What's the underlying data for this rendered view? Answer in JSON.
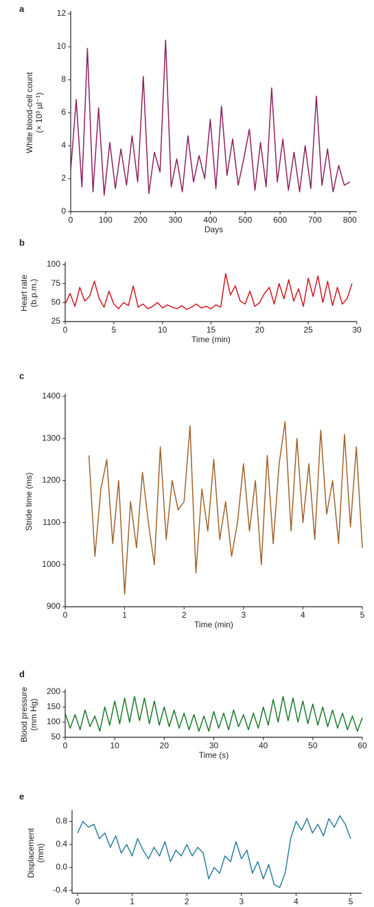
{
  "chart_data": [
    {
      "type": "line",
      "panel_label": "a",
      "ylabel": [
        "White blood-cell count",
        "(× 10³ µl⁻¹)"
      ],
      "xlabel": "Days",
      "color": "#8e1f5e",
      "xlim": [
        0,
        820
      ],
      "ylim": [
        0,
        12
      ],
      "xticks": [
        0,
        100,
        200,
        300,
        400,
        500,
        600,
        700,
        800
      ],
      "yticks": [
        0,
        2,
        4,
        6,
        8,
        10,
        12
      ],
      "x": [
        0,
        16,
        32,
        48,
        64,
        80,
        96,
        112,
        128,
        144,
        160,
        176,
        192,
        208,
        224,
        240,
        256,
        272,
        288,
        304,
        320,
        336,
        352,
        368,
        384,
        400,
        416,
        432,
        448,
        464,
        480,
        496,
        512,
        528,
        544,
        560,
        576,
        592,
        608,
        624,
        640,
        656,
        672,
        688,
        704,
        720,
        736,
        752,
        768,
        784,
        800
      ],
      "values": [
        2.5,
        6.8,
        1.5,
        9.9,
        1.2,
        6.3,
        1.0,
        4.2,
        1.4,
        3.8,
        1.6,
        4.6,
        1.8,
        8.2,
        1.1,
        3.6,
        2.4,
        10.4,
        1.5,
        3.2,
        1.2,
        4.6,
        1.8,
        3.4,
        2.0,
        5.6,
        1.4,
        6.4,
        2.2,
        4.4,
        1.6,
        3.2,
        5.0,
        1.3,
        4.2,
        1.5,
        7.5,
        1.8,
        4.4,
        1.3,
        3.6,
        1.2,
        4.0,
        1.4,
        7.0,
        1.6,
        3.8,
        1.2,
        2.8,
        1.6,
        1.8
      ]
    },
    {
      "type": "line",
      "panel_label": "b",
      "ylabel": [
        "Heart rate",
        "(b.p.m.)"
      ],
      "xlabel": "Time (min)",
      "color": "#d0161e",
      "xlim": [
        0,
        30
      ],
      "ylim": [
        25,
        100
      ],
      "xticks": [
        0,
        5,
        10,
        15,
        20,
        25,
        30
      ],
      "yticks": [
        25,
        50,
        75,
        100
      ],
      "x": [
        0,
        0.5,
        1,
        1.5,
        2,
        2.5,
        3,
        3.5,
        4,
        4.5,
        5,
        5.5,
        6,
        6.5,
        7,
        7.5,
        8,
        8.5,
        9,
        9.5,
        10,
        10.5,
        11,
        11.5,
        12,
        12.5,
        13,
        13.5,
        14,
        14.5,
        15,
        15.5,
        16,
        16.5,
        17,
        17.5,
        18,
        18.5,
        19,
        19.5,
        20,
        20.5,
        21,
        21.5,
        22,
        22.5,
        23,
        23.5,
        24,
        24.5,
        25,
        25.5,
        26,
        26.5,
        27,
        27.5,
        28,
        28.5,
        29,
        29.5
      ],
      "values": [
        48,
        62,
        45,
        70,
        52,
        58,
        78,
        55,
        44,
        65,
        48,
        42,
        50,
        46,
        72,
        44,
        48,
        42,
        45,
        50,
        43,
        47,
        44,
        42,
        46,
        41,
        44,
        48,
        43,
        45,
        42,
        47,
        44,
        88,
        60,
        72,
        52,
        48,
        65,
        45,
        50,
        62,
        70,
        48,
        75,
        55,
        80,
        52,
        68,
        45,
        82,
        58,
        85,
        50,
        78,
        46,
        70,
        48,
        55,
        75
      ]
    },
    {
      "type": "line",
      "panel_label": "c",
      "ylabel": [
        "Stride time (ms)"
      ],
      "xlabel": "Time (min)",
      "color": "#a0622a",
      "xlim": [
        0,
        5
      ],
      "ylim": [
        900,
        1400
      ],
      "xticks": [
        0,
        1,
        2,
        3,
        4,
        5
      ],
      "yticks": [
        900,
        1000,
        1100,
        1200,
        1300,
        1400
      ],
      "x": [
        0.4,
        0.5,
        0.6,
        0.7,
        0.8,
        0.9,
        1.0,
        1.1,
        1.2,
        1.3,
        1.4,
        1.5,
        1.6,
        1.7,
        1.8,
        1.9,
        2.0,
        2.1,
        2.2,
        2.3,
        2.4,
        2.5,
        2.6,
        2.7,
        2.8,
        2.9,
        3.0,
        3.1,
        3.2,
        3.3,
        3.4,
        3.5,
        3.6,
        3.7,
        3.8,
        3.9,
        4.0,
        4.1,
        4.2,
        4.3,
        4.4,
        4.5,
        4.6,
        4.7,
        4.8,
        4.9,
        5.0
      ],
      "values": [
        1260,
        1020,
        1180,
        1250,
        1050,
        1200,
        930,
        1150,
        1040,
        1220,
        1100,
        1000,
        1280,
        1060,
        1200,
        1130,
        1150,
        1330,
        980,
        1180,
        1080,
        1250,
        1060,
        1150,
        1020,
        1100,
        1240,
        1080,
        1200,
        1000,
        1260,
        1050,
        1240,
        1340,
        1080,
        1300,
        1100,
        1240,
        1060,
        1320,
        1120,
        1200,
        1050,
        1310,
        1090,
        1280,
        1040
      ]
    },
    {
      "type": "line",
      "panel_label": "d",
      "ylabel": [
        "Blood pressure",
        "(mm Hg)"
      ],
      "xlabel": "Time (s)",
      "color": "#1a7a2a",
      "xlim": [
        0,
        60
      ],
      "ylim": [
        50,
        200
      ],
      "xticks": [
        0,
        10,
        20,
        30,
        40,
        50,
        60
      ],
      "yticks": [
        50,
        100,
        150,
        200
      ],
      "x": [
        0,
        1,
        2,
        3,
        4,
        5,
        6,
        7,
        8,
        9,
        10,
        11,
        12,
        13,
        14,
        15,
        16,
        17,
        18,
        19,
        20,
        21,
        22,
        23,
        24,
        25,
        26,
        27,
        28,
        29,
        30,
        31,
        32,
        33,
        34,
        35,
        36,
        37,
        38,
        39,
        40,
        41,
        42,
        43,
        44,
        45,
        46,
        47,
        48,
        49,
        50,
        51,
        52,
        53,
        54,
        55,
        56,
        57,
        58,
        59,
        60
      ],
      "values": [
        130,
        80,
        125,
        75,
        140,
        85,
        120,
        70,
        150,
        90,
        170,
        95,
        180,
        100,
        185,
        105,
        180,
        95,
        170,
        90,
        150,
        85,
        140,
        80,
        130,
        75,
        125,
        70,
        120,
        70,
        135,
        80,
        130,
        75,
        140,
        85,
        125,
        75,
        130,
        80,
        150,
        90,
        175,
        100,
        185,
        105,
        180,
        100,
        170,
        95,
        160,
        90,
        150,
        85,
        140,
        80,
        130,
        75,
        120,
        70,
        115
      ]
    },
    {
      "type": "line",
      "panel_label": "e",
      "ylabel": [
        "Displacement",
        "(mm)"
      ],
      "xlabel": "Time (s)",
      "color": "#2a7ea0",
      "xlim": [
        -0.1,
        5.2
      ],
      "ylim": [
        -0.45,
        0.95
      ],
      "xticks": [
        0,
        1,
        2,
        3,
        4,
        5
      ],
      "yticks": [
        -0.4,
        {
          "value": 0,
          "label": "0.0"
        },
        0.4,
        0.8
      ],
      "x": [
        0,
        0.1,
        0.2,
        0.3,
        0.4,
        0.5,
        0.6,
        0.7,
        0.8,
        0.9,
        1.0,
        1.1,
        1.2,
        1.3,
        1.4,
        1.5,
        1.6,
        1.7,
        1.8,
        1.9,
        2.0,
        2.1,
        2.2,
        2.3,
        2.4,
        2.5,
        2.6,
        2.7,
        2.8,
        2.9,
        3.0,
        3.1,
        3.2,
        3.3,
        3.4,
        3.5,
        3.6,
        3.7,
        3.8,
        3.9,
        4.0,
        4.1,
        4.2,
        4.3,
        4.4,
        4.5,
        4.6,
        4.7,
        4.8,
        4.9,
        5.0
      ],
      "values": [
        0.6,
        0.8,
        0.7,
        0.75,
        0.5,
        0.6,
        0.35,
        0.55,
        0.25,
        0.4,
        0.2,
        0.5,
        0.3,
        0.15,
        0.35,
        0.2,
        0.45,
        0.1,
        0.3,
        0.2,
        0.4,
        0.2,
        0.35,
        0.25,
        -0.2,
        0.0,
        -0.1,
        0.2,
        0.1,
        0.45,
        0.15,
        0.3,
        -0.1,
        0.1,
        -0.2,
        0.05,
        -0.3,
        -0.35,
        -0.1,
        0.5,
        0.8,
        0.65,
        0.85,
        0.6,
        0.75,
        0.55,
        0.85,
        0.7,
        0.9,
        0.75,
        0.5
      ]
    }
  ]
}
